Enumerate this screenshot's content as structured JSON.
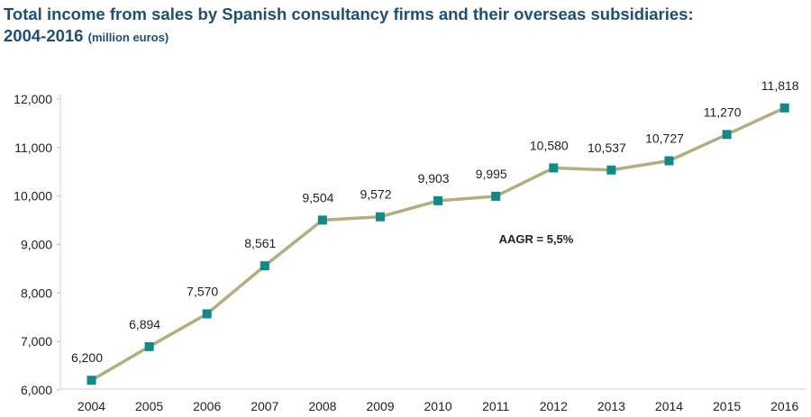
{
  "title_line1": "Total income from sales by Spanish consultancy firms and their overseas subsidiaries:",
  "title_line2": "2004-2016",
  "title_unit": "(million euros)",
  "chart_data": {
    "type": "line",
    "title": "Total income from sales by Spanish consultancy firms and their overseas subsidiaries: 2004-2016",
    "unit": "(million euros)",
    "categories": [
      "2004",
      "2005",
      "2006",
      "2007",
      "2008",
      "2009",
      "2010",
      "2011",
      "2012",
      "2013",
      "2014",
      "2015",
      "2016"
    ],
    "values": [
      6200,
      6894,
      7570,
      8561,
      9504,
      9572,
      9903,
      9995,
      10580,
      10537,
      10727,
      11270,
      11818
    ],
    "labels": [
      "6,200",
      "6,894",
      "7,570",
      "8,561",
      "9,504",
      "9,572",
      "9,903",
      "9,995",
      "10,580",
      "10,537",
      "10,727",
      "11,270",
      "11,818"
    ],
    "yticks": [
      6000,
      7000,
      8000,
      9000,
      10000,
      11000,
      12000
    ],
    "ytick_labels": [
      "6,000",
      "7,000",
      "8,000",
      "9,000",
      "10,000",
      "11,000",
      "12,000"
    ],
    "ylim": [
      6000,
      12000
    ],
    "annotation": "AAGR = 5,5%",
    "xlabel": "",
    "ylabel": "",
    "grid": false,
    "line_color": "#b5ad7e",
    "marker_color": "#0e8a89"
  }
}
